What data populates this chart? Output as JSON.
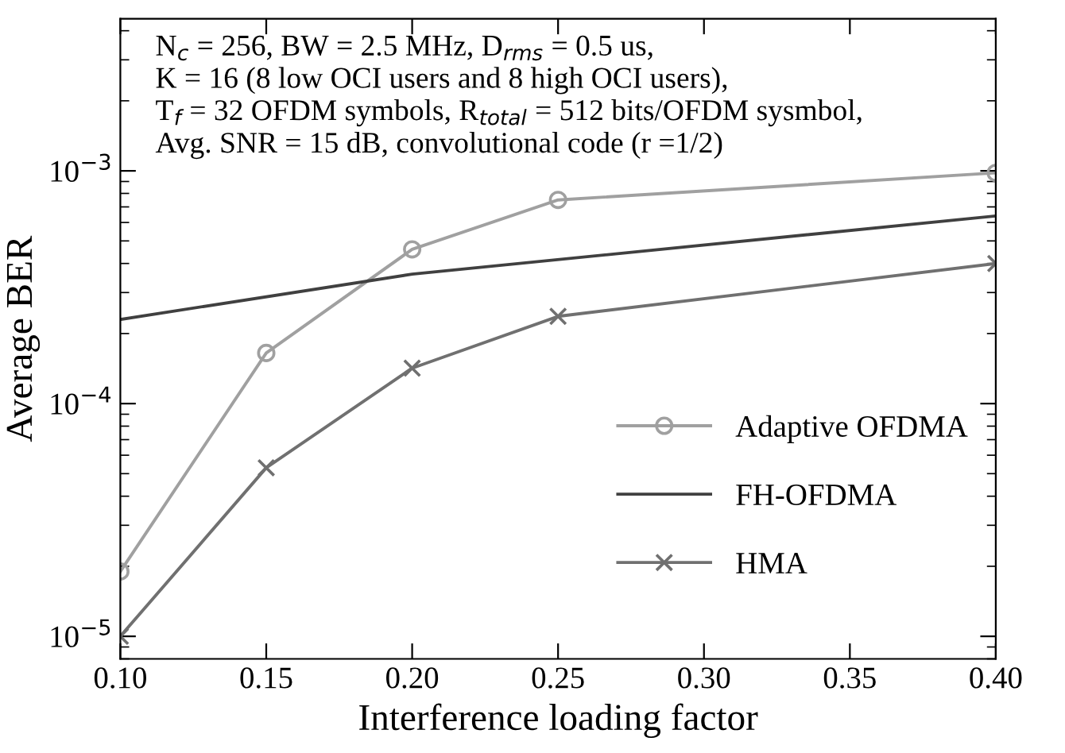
{
  "chart_data": {
    "type": "line",
    "xlabel": "Interference loading factor",
    "ylabel": "Average BER",
    "x": [
      0.1,
      0.15,
      0.2,
      0.25,
      0.4
    ],
    "series": [
      {
        "name": "Adaptive OFDMA",
        "color": "#a0a0a0",
        "marker": "circle",
        "values": [
          1.9e-05,
          0.000165,
          0.00046,
          0.00075,
          0.00098
        ]
      },
      {
        "name": "FH-OFDMA",
        "color": "#404040",
        "marker": "none",
        "x": [
          0.1,
          0.2,
          0.4
        ],
        "values": [
          0.00023,
          0.00036,
          0.00064
        ]
      },
      {
        "name": "HMA",
        "color": "#707070",
        "marker": "cross",
        "values": [
          1e-05,
          5.3e-05,
          0.000142,
          0.000237,
          0.0004
        ]
      }
    ],
    "log": true,
    "xlim": [
      0.1,
      0.4
    ],
    "ylim": [
      8e-06,
      0.0045
    ],
    "xticks": [
      {
        "value": 0.1,
        "label": "0.10"
      },
      {
        "value": 0.15,
        "label": "0.15"
      },
      {
        "value": 0.2,
        "label": "0.20"
      },
      {
        "value": 0.25,
        "label": "0.25"
      },
      {
        "value": 0.3,
        "label": "0.30"
      },
      {
        "value": 0.35,
        "label": "0.35"
      },
      {
        "value": 0.4,
        "label": "0.40"
      }
    ],
    "yticks": [
      {
        "value": 1e-05,
        "label": "10$^{−5}$"
      },
      {
        "value": 0.0001,
        "label": "10$^{−4}$"
      },
      {
        "value": 0.001,
        "label": "10$^{−3}$"
      }
    ],
    "annotations": [
      "N$_{c}$ = 256, BW = 2.5 MHz, D$_{rms}$ = 0.5 us,\nK = 16 (8 low OCI users and 8 high OCI users),\nT$_{f}$ = 32 OFDM symbols, R$_{total}$ = 512 bits/OFDM sysmbol,\nAvg. SNR = 15 dB, convolutional code (r =1/2)"
    ],
    "grid": false,
    "legend": "bottom right",
    "line_style": "solid"
  }
}
